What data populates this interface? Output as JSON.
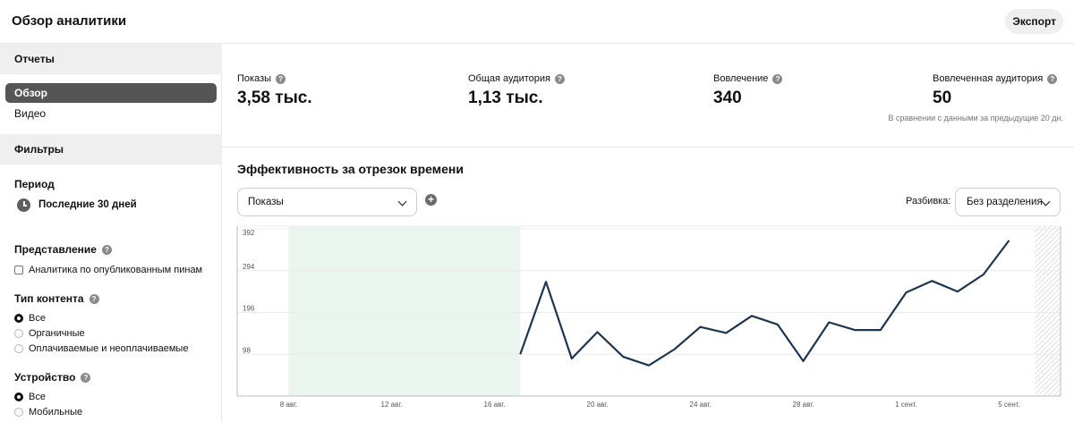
{
  "header": {
    "title": "Обзор аналитики",
    "export_label": "Экспорт"
  },
  "sidebar": {
    "reports_header": "Отчеты",
    "nav": [
      {
        "label": "Обзор",
        "active": true
      },
      {
        "label": "Видео",
        "active": false
      }
    ],
    "filters_header": "Фильтры",
    "period": {
      "label": "Период",
      "value": "Последние 30 дней",
      "icon": "clock-icon"
    },
    "view": {
      "label": "Представление",
      "checkbox_label": "Аналитика по опубликованным пинам",
      "checked": false
    },
    "content_type": {
      "label": "Тип контента",
      "options": [
        "Все",
        "Органичные",
        "Оплачиваемые и неоплачиваемые"
      ],
      "selected": "Все"
    },
    "device": {
      "label": "Устройство",
      "options": [
        "Все",
        "Мобильные"
      ],
      "selected": "Все"
    }
  },
  "metrics": [
    {
      "label": "Показы",
      "value": "3,58 тыс."
    },
    {
      "label": "Общая аудитория",
      "value": "1,13 тыс."
    },
    {
      "label": "Вовлечение",
      "value": "340"
    },
    {
      "label": "Вовлеченная аудитория",
      "value": "50"
    }
  ],
  "compare_note": "В сравнении с данными за предыдущие 20 дн.",
  "performance": {
    "title": "Эффективность за отрезок времени",
    "metric_select": "Показы",
    "split_label": "Разбивка:",
    "split_value": "Без разделения"
  },
  "colors": {
    "line": "#1d3650",
    "highlight": "#e9f5ee",
    "active_nav": "#555555"
  },
  "chart_data": {
    "type": "line",
    "ylim": [
      0,
      392
    ],
    "yticks": [
      98,
      196,
      294,
      392
    ],
    "ytick_labels": [
      "98",
      "196",
      "294",
      "392"
    ],
    "xlim": [
      "2024-08-06",
      "2024-09-07"
    ],
    "xticks": [
      "2024-08-08",
      "2024-08-12",
      "2024-08-16",
      "2024-08-20",
      "2024-08-24",
      "2024-08-28",
      "2024-09-01",
      "2024-09-05"
    ],
    "xtick_labels": [
      "8 авг.",
      "12 авг.",
      "16 авг.",
      "20 авг.",
      "24 авг.",
      "28 авг.",
      "1 сент.",
      "5 сент."
    ],
    "highlight_range": [
      "2024-08-08",
      "2024-08-17"
    ],
    "hatched_range": [
      "2024-09-06",
      "2024-09-07"
    ],
    "series": [
      {
        "x": [
          "2024-08-17",
          "2024-08-18",
          "2024-08-19",
          "2024-08-20",
          "2024-08-21",
          "2024-08-22",
          "2024-08-23",
          "2024-08-24",
          "2024-08-25",
          "2024-08-26",
          "2024-08-27",
          "2024-08-28",
          "2024-08-29",
          "2024-08-30",
          "2024-08-31",
          "2024-09-01",
          "2024-09-02",
          "2024-09-03",
          "2024-09-04",
          "2024-09-05"
        ],
        "values": [
          98,
          268,
          88,
          150,
          92,
          72,
          110,
          162,
          148,
          188,
          168,
          82,
          173,
          155,
          155,
          243,
          270,
          245,
          285,
          365
        ]
      }
    ],
    "grid": true
  }
}
